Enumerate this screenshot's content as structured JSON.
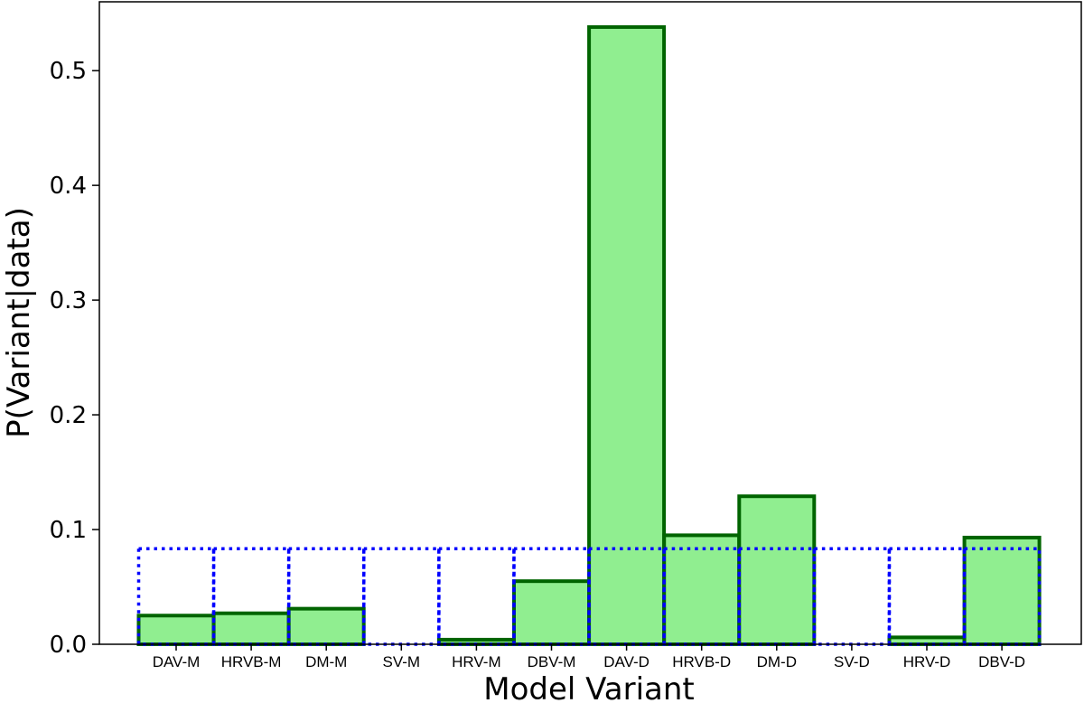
{
  "chart_data": {
    "type": "bar",
    "xlabel": "Model Variant",
    "ylabel": "P(Variant|data)",
    "ylim": [
      0,
      0.56
    ],
    "yticks": [
      0.0,
      0.1,
      0.2,
      0.3,
      0.4,
      0.5
    ],
    "ytick_labels": [
      "0.0",
      "0.1",
      "0.2",
      "0.3",
      "0.4",
      "0.5"
    ],
    "categories": [
      "DAV-M",
      "HRVB-M",
      "DM-M",
      "SV-M",
      "HRV-M",
      "DBV-M",
      "DAV-D",
      "HRVB-D",
      "DM-D",
      "SV-D",
      "HRV-D",
      "DBV-D"
    ],
    "series": [
      {
        "style": "filled bars",
        "values": [
          0.025,
          0.027,
          0.031,
          0.0,
          0.004,
          0.055,
          0.538,
          0.095,
          0.129,
          0.0,
          0.006,
          0.093
        ],
        "fill_color": "#90ee90",
        "edge_color": "#006400"
      },
      {
        "style": "dotted outline bars",
        "values": [
          0.0833,
          0.0833,
          0.0833,
          0.0833,
          0.0833,
          0.0833,
          0.0833,
          0.0833,
          0.0833,
          0.0833,
          0.0833,
          0.0833
        ],
        "edge_color": "#0000ff"
      }
    ],
    "grid": false,
    "legend": "none"
  }
}
